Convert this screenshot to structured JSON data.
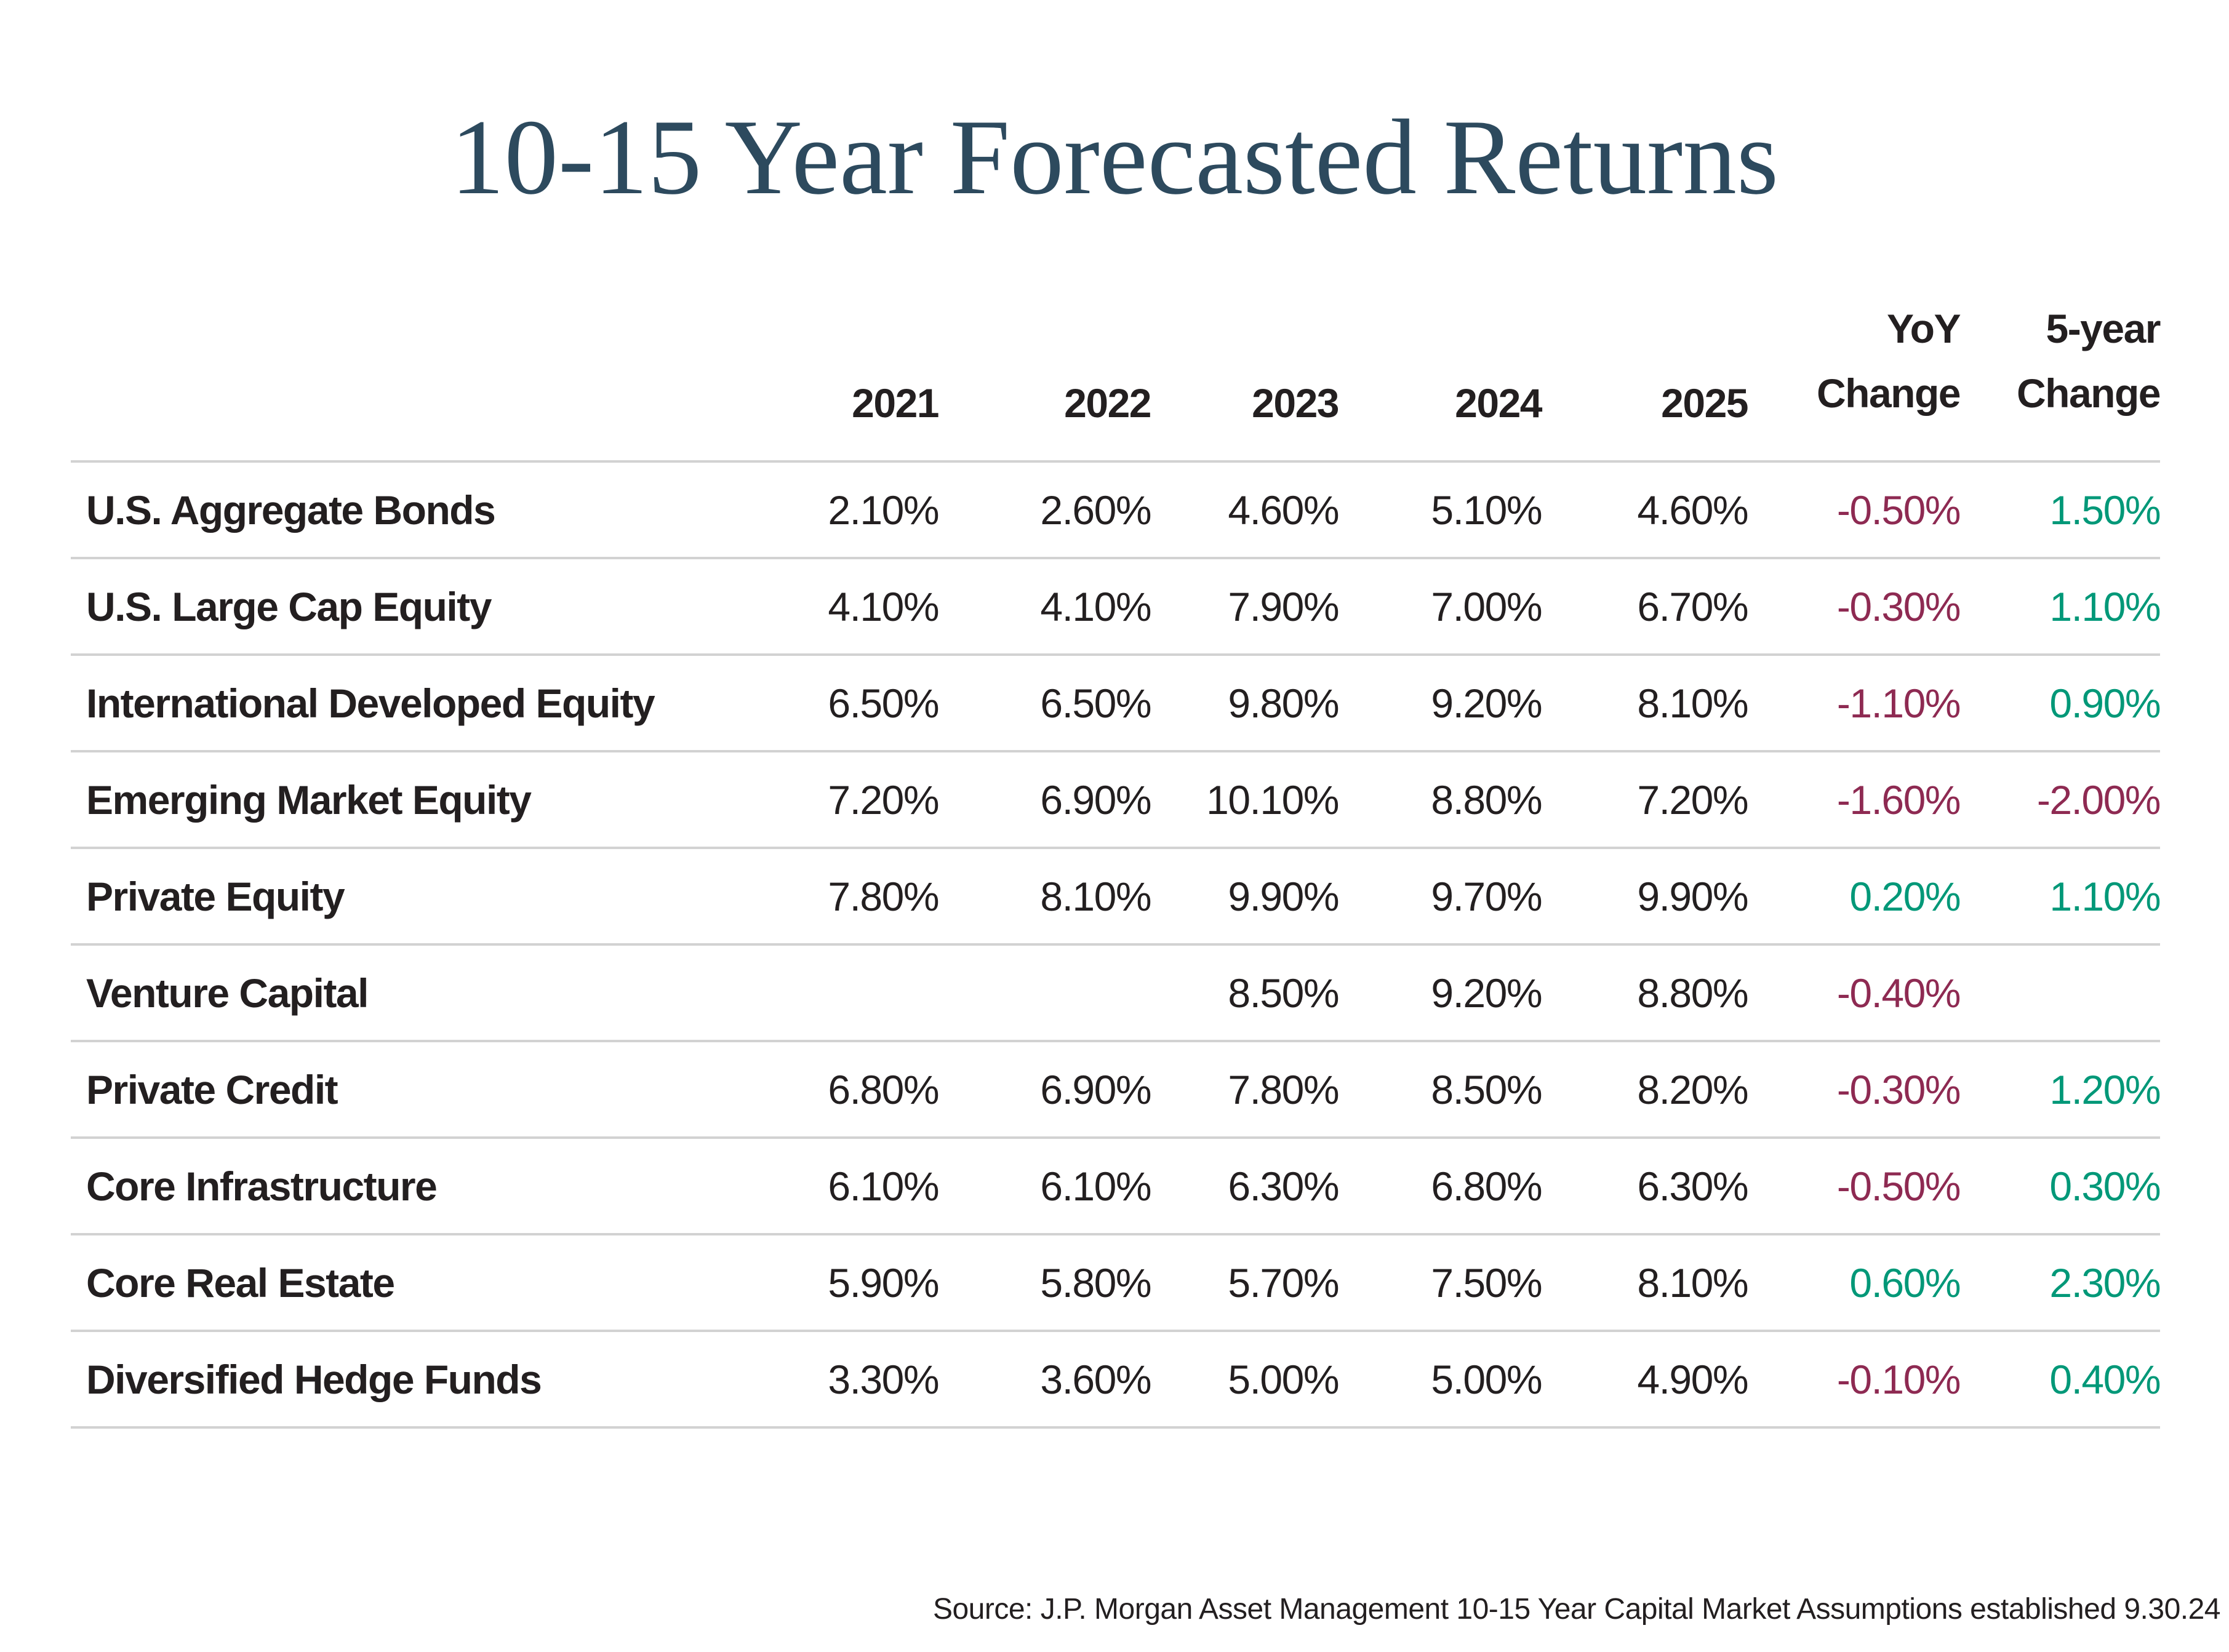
{
  "title": "10-15 Year Forecasted Returns",
  "header": {
    "yoy_top": "YoY",
    "yoy_bottom": "Change",
    "fiveyr_top": "5-year",
    "fiveyr_bottom": "Change"
  },
  "colors": {
    "positive": "#009878",
    "negative": "#8e2a52",
    "title": "#2d4a5e",
    "divider": "#d2d2d2",
    "text": "#231f20"
  },
  "source": "Source: J.P. Morgan Asset Management 10-15 Year Capital Market Assumptions established 9.30.24",
  "chart_data": {
    "type": "table",
    "title": "10-15 Year Forecasted Returns",
    "columns": [
      "2021",
      "2022",
      "2023",
      "2024",
      "2025",
      "YoY Change",
      "5-year Change"
    ],
    "rows": [
      {
        "label": "U.S. Aggregate Bonds",
        "values": [
          "2.10%",
          "2.60%",
          "4.60%",
          "5.10%",
          "4.60%"
        ],
        "yoy": "-0.50%",
        "five_year": "1.50%"
      },
      {
        "label": "U.S. Large Cap Equity",
        "values": [
          "4.10%",
          "4.10%",
          "7.90%",
          "7.00%",
          "6.70%"
        ],
        "yoy": "-0.30%",
        "five_year": "1.10%"
      },
      {
        "label": "International Developed Equity",
        "values": [
          "6.50%",
          "6.50%",
          "9.80%",
          "9.20%",
          "8.10%"
        ],
        "yoy": "-1.10%",
        "five_year": "0.90%"
      },
      {
        "label": "Emerging Market Equity",
        "values": [
          "7.20%",
          "6.90%",
          "10.10%",
          "8.80%",
          "7.20%"
        ],
        "yoy": "-1.60%",
        "five_year": "-2.00%"
      },
      {
        "label": "Private Equity",
        "values": [
          "7.80%",
          "8.10%",
          "9.90%",
          "9.70%",
          "9.90%"
        ],
        "yoy": "0.20%",
        "five_year": "1.10%"
      },
      {
        "label": "Venture Capital",
        "values": [
          "",
          "",
          "8.50%",
          "9.20%",
          "8.80%"
        ],
        "yoy": "-0.40%",
        "five_year": ""
      },
      {
        "label": "Private Credit",
        "values": [
          "6.80%",
          "6.90%",
          "7.80%",
          "8.50%",
          "8.20%"
        ],
        "yoy": "-0.30%",
        "five_year": "1.20%"
      },
      {
        "label": "Core Infrastructure",
        "values": [
          "6.10%",
          "6.10%",
          "6.30%",
          "6.80%",
          "6.30%"
        ],
        "yoy": "-0.50%",
        "five_year": "0.30%"
      },
      {
        "label": "Core Real Estate",
        "values": [
          "5.90%",
          "5.80%",
          "5.70%",
          "7.50%",
          "8.10%"
        ],
        "yoy": "0.60%",
        "five_year": "2.30%"
      },
      {
        "label": "Diversified Hedge Funds",
        "values": [
          "3.30%",
          "3.60%",
          "5.00%",
          "5.00%",
          "4.90%"
        ],
        "yoy": "-0.10%",
        "five_year": "0.40%"
      }
    ],
    "source": "Source: J.P. Morgan Asset Management 10-15 Year Capital Market Assumptions established 9.30.24"
  }
}
